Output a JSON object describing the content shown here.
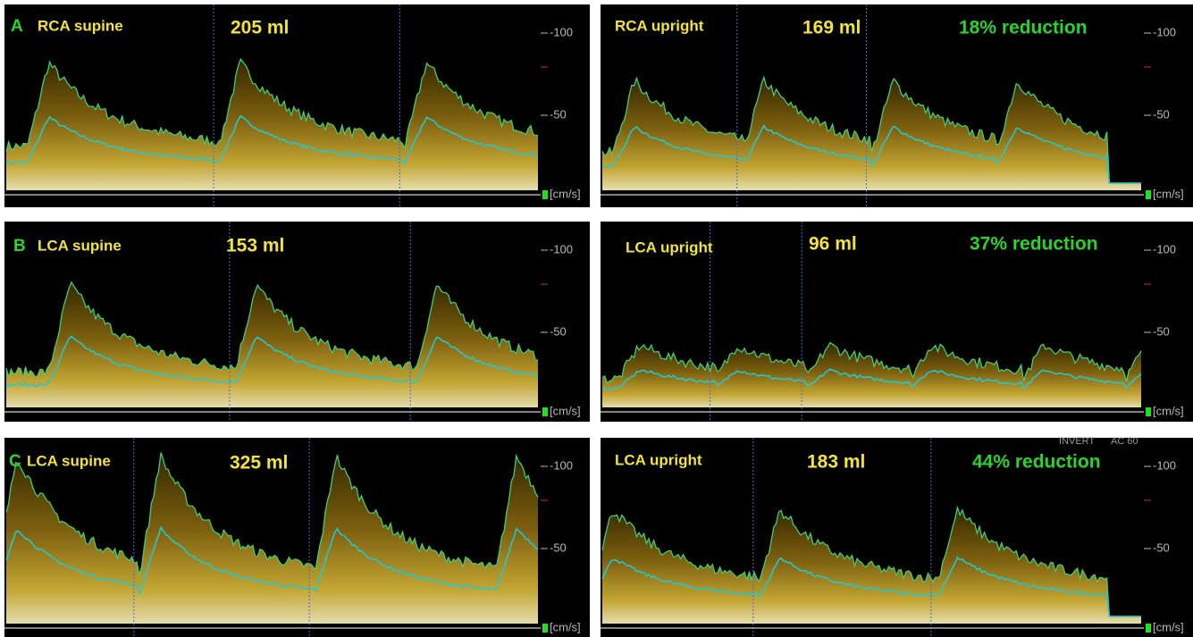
{
  "panels": [
    {
      "letter": "A",
      "label": "RCA supine",
      "volume": "205 ml",
      "ticks": [
        "-100",
        "-50"
      ],
      "unit": "[cm/s]"
    },
    {
      "label": "RCA upright",
      "volume": "169 ml",
      "reduction": "18% reduction",
      "ticks": [
        "-100",
        "-50"
      ],
      "unit": "[cm/s]"
    },
    {
      "letter": "B",
      "label": "LCA supine",
      "volume": "153 ml",
      "ticks": [
        "-100",
        "-50"
      ],
      "unit": "[cm/s]"
    },
    {
      "label": "LCA upright",
      "volume": "96 ml",
      "reduction": "37% reduction",
      "ticks": [
        "-100",
        "-50"
      ],
      "unit": "[cm/s]"
    },
    {
      "letter": "C",
      "label": "LCA supine",
      "volume": "325 ml",
      "ticks": [
        "-100",
        "-50"
      ],
      "unit": "[cm/s]"
    },
    {
      "label": "LCA upright",
      "volume": "183 ml",
      "reduction": "44% reduction",
      "ticks": [
        "-100",
        "-50"
      ],
      "unit": "[cm/s]",
      "mode": "INVERT",
      "filter": "AC 60"
    }
  ]
}
